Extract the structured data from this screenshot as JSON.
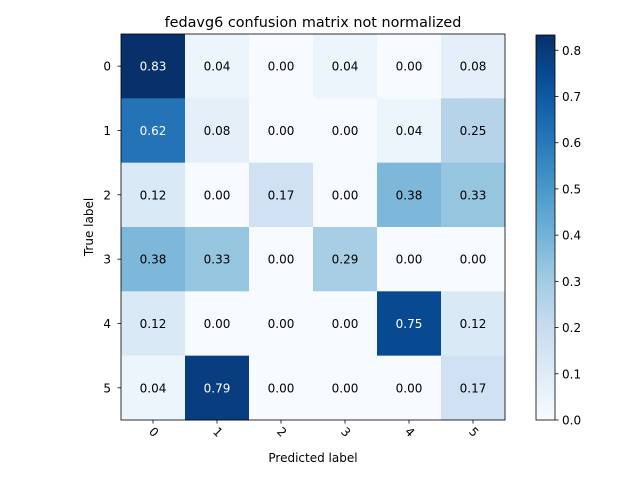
{
  "chart_data": {
    "type": "heatmap",
    "title": "fedavg6 confusion matrix not normalized",
    "xlabel": "Predicted label",
    "ylabel": "True label",
    "x_categories": [
      "0",
      "1",
      "2",
      "3",
      "4",
      "5"
    ],
    "y_categories": [
      "0",
      "1",
      "2",
      "3",
      "4",
      "5"
    ],
    "values": [
      [
        0.83,
        0.04,
        0.0,
        0.04,
        0.0,
        0.08
      ],
      [
        0.62,
        0.08,
        0.0,
        0.0,
        0.04,
        0.25
      ],
      [
        0.12,
        0.0,
        0.17,
        0.0,
        0.38,
        0.33
      ],
      [
        0.38,
        0.33,
        0.0,
        0.29,
        0.0,
        0.0
      ],
      [
        0.12,
        0.0,
        0.0,
        0.0,
        0.75,
        0.12
      ],
      [
        0.04,
        0.79,
        0.0,
        0.0,
        0.0,
        0.17
      ]
    ],
    "colormap": "Blues",
    "colorbar": {
      "range": [
        0.0,
        0.833
      ],
      "ticks": [
        "0.0",
        "0.1",
        "0.2",
        "0.3",
        "0.4",
        "0.5",
        "0.6",
        "0.7",
        "0.8"
      ],
      "tick_values": [
        0.0,
        0.1,
        0.2,
        0.3,
        0.4,
        0.5,
        0.6,
        0.7,
        0.8
      ]
    },
    "x_tick_rotation": 45,
    "grid": false
  }
}
